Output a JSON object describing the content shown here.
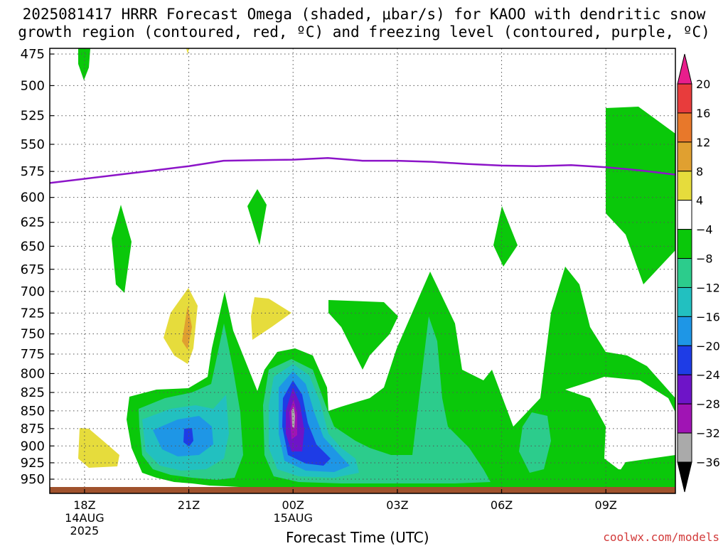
{
  "title_line1": "2025081417 HRRR Forecast Omega (shaded, μbar/s) for KAOO with dendritic snow",
  "title_line2": "growth region (contoured, red, ºC) and freezing level (contoured, purple, ºC)",
  "credit": "coolwx.com/models",
  "chart_data": {
    "type": "heatmap",
    "title": "2025081417 HRRR Forecast Omega (shaded, μbar/s) for KAOO with dendritic snow growth region (contoured, red, ºC) and freezing level (contoured, purple, ºC)",
    "xlabel": "Forecast Time (UTC)",
    "ylabel": "",
    "y_axis": {
      "unit": "hPa",
      "reversed": true,
      "ticks": [
        475,
        500,
        525,
        550,
        575,
        600,
        625,
        650,
        675,
        700,
        725,
        750,
        775,
        800,
        825,
        850,
        875,
        900,
        925,
        950
      ]
    },
    "x_axis": {
      "ticks": [
        {
          "label": "18Z",
          "sub1": "14AUG",
          "sub2": "2025",
          "hour": 1
        },
        {
          "label": "21Z",
          "sub1": "",
          "sub2": "",
          "hour": 4
        },
        {
          "label": "00Z",
          "sub1": "15AUG",
          "sub2": "",
          "hour": 7
        },
        {
          "label": "03Z",
          "sub1": "",
          "sub2": "",
          "hour": 10
        },
        {
          "label": "06Z",
          "sub1": "",
          "sub2": "",
          "hour": 13
        },
        {
          "label": "09Z",
          "sub1": "",
          "sub2": "",
          "hour": 16
        }
      ],
      "range_hours": [
        0,
        18
      ]
    },
    "grid": true,
    "colorbar": {
      "labels": [
        "20",
        "16",
        "12",
        "8",
        "4",
        "−4",
        "−8",
        "−12",
        "−16",
        "−20",
        "−24",
        "−28",
        "−32",
        "−36"
      ],
      "colors": [
        "#e81e8c",
        "#e83c3c",
        "#e8782a",
        "#e0a030",
        "#e6dc3c",
        "#ffffff",
        "#0ac80a",
        "#2ccc8c",
        "#22c0c0",
        "#1e96e6",
        "#1e3ce6",
        "#6e14c8",
        "#a014b4",
        "#aaaaaa",
        "#000000"
      ]
    },
    "freezing_level": {
      "color": "#8c14c8",
      "points": [
        [
          0,
          586
        ],
        [
          1,
          582
        ],
        [
          2,
          578
        ],
        [
          3,
          574
        ],
        [
          4,
          570
        ],
        [
          5,
          565
        ],
        [
          6,
          564.5
        ],
        [
          7,
          564
        ],
        [
          8,
          562.5
        ],
        [
          9,
          565
        ],
        [
          10,
          565
        ],
        [
          11,
          566
        ],
        [
          12,
          568
        ],
        [
          13,
          569.5
        ],
        [
          14,
          570
        ],
        [
          15,
          569
        ],
        [
          16,
          571
        ],
        [
          17,
          574
        ],
        [
          18,
          578
        ]
      ]
    },
    "ground_color": "#a0522d"
  }
}
